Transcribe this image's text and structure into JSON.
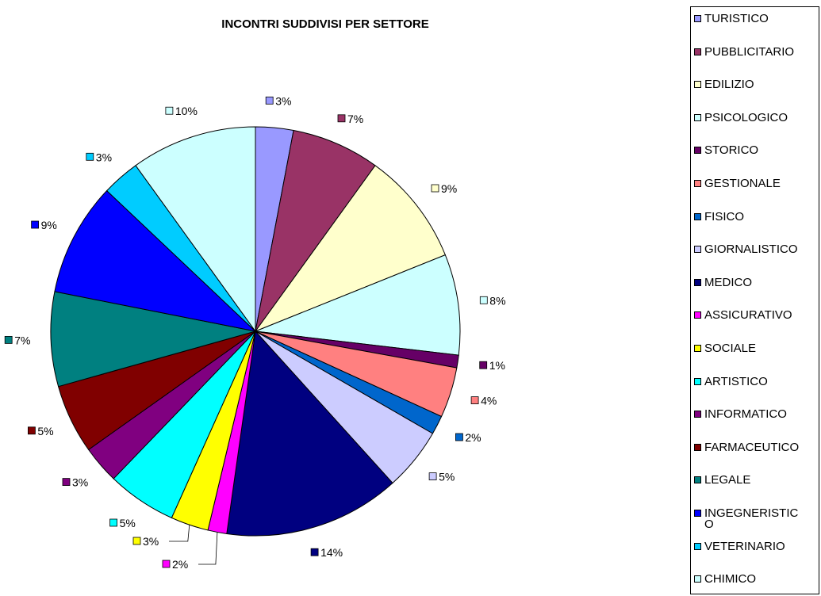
{
  "chart_data": {
    "type": "pie",
    "title": "INCONTRI SUDDIVISI PER SETTORE",
    "legend_position": "right",
    "slices": [
      {
        "label": "TURISTICO",
        "value": 3,
        "value_label": "3%",
        "color": "#9999ff"
      },
      {
        "label": "PUBBLICITARIO",
        "value": 7,
        "value_label": "7%",
        "color": "#993366"
      },
      {
        "label": "EDILIZIO",
        "value": 9,
        "value_label": "9%",
        "color": "#ffffcc"
      },
      {
        "label": "PSICOLOGICO",
        "value": 8,
        "value_label": "8%",
        "color": "#ccffff"
      },
      {
        "label": "STORICO",
        "value": 1,
        "value_label": "1%",
        "color": "#660066"
      },
      {
        "label": "GESTIONALE",
        "value": 4,
        "value_label": "4%",
        "color": "#ff8080"
      },
      {
        "label": "FISICO",
        "value": 1.5,
        "value_label": "2%",
        "color": "#0066cc"
      },
      {
        "label": "GIORNALISTICO",
        "value": 5,
        "value_label": "5%",
        "color": "#ccccff"
      },
      {
        "label": "MEDICO",
        "value": 14,
        "value_label": "14%",
        "color": "#000080"
      },
      {
        "label": "ASSICURATIVO",
        "value": 1.5,
        "value_label": "2%",
        "color": "#ff00ff"
      },
      {
        "label": "SOCIALE",
        "value": 3,
        "value_label": "3%",
        "color": "#ffff00"
      },
      {
        "label": "ARTISTICO",
        "value": 5.5,
        "value_label": "5%",
        "color": "#00ffff"
      },
      {
        "label": "INFORMATICO",
        "value": 3,
        "value_label": "3%",
        "color": "#800080"
      },
      {
        "label": "FARMACEUTICO",
        "value": 5.5,
        "value_label": "5%",
        "color": "#800000"
      },
      {
        "label": "LEGALE",
        "value": 7.5,
        "value_label": "7%",
        "color": "#008080"
      },
      {
        "label": "INGEGNERISTIC\nO",
        "value": 9,
        "value_label": "9%",
        "color": "#0000ff"
      },
      {
        "label": "VETERINARIO",
        "value": 3,
        "value_label": "3%",
        "color": "#00ccff"
      },
      {
        "label": "CHIMICO",
        "value": 10,
        "value_label": "10%",
        "color": "#ccffff"
      }
    ]
  }
}
